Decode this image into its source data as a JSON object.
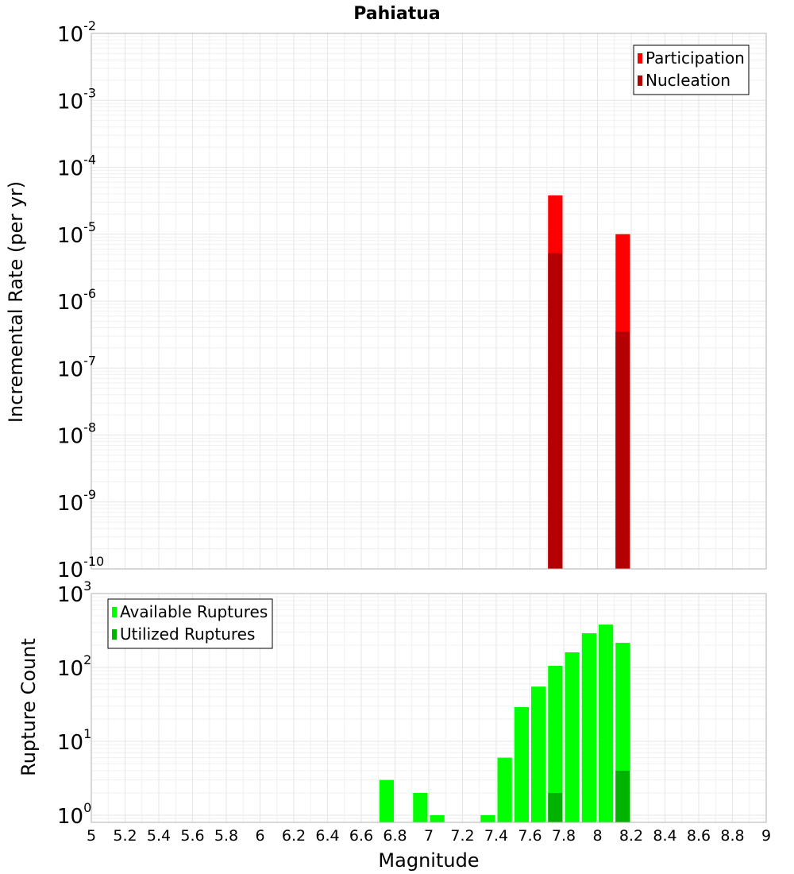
{
  "chart_data": [
    {
      "type": "bar",
      "title": "Pahiatua",
      "ylabel": "Incremental Rate (per yr)",
      "xlabel": "",
      "yscale": "log",
      "ylim": [
        1e-10,
        0.01
      ],
      "xlim": [
        5,
        9
      ],
      "y_ticks": [
        {
          "base": "10",
          "exp": "-10",
          "value": 1e-10
        },
        {
          "base": "10",
          "exp": "-9",
          "value": 1e-09
        },
        {
          "base": "10",
          "exp": "-8",
          "value": 1e-08
        },
        {
          "base": "10",
          "exp": "-7",
          "value": 1e-07
        },
        {
          "base": "10",
          "exp": "-6",
          "value": 1e-06
        },
        {
          "base": "10",
          "exp": "-5",
          "value": 1e-05
        },
        {
          "base": "10",
          "exp": "-4",
          "value": 0.0001
        },
        {
          "base": "10",
          "exp": "-3",
          "value": 0.001
        },
        {
          "base": "10",
          "exp": "-2",
          "value": 0.01
        }
      ],
      "legend_position": "top-right",
      "series": [
        {
          "name": "Participation",
          "color": "#ff0000",
          "x": [
            7.75,
            8.15
          ],
          "values": [
            3.8e-05,
            1e-05
          ]
        },
        {
          "name": "Nucleation",
          "color": "#b30000",
          "x": [
            7.75,
            8.15
          ],
          "values": [
            5.2e-06,
            3.5e-07
          ]
        }
      ]
    },
    {
      "type": "bar",
      "title": "",
      "ylabel": "Rupture Count",
      "xlabel": "Magnitude",
      "yscale": "log",
      "ylim": [
        0.8,
        1000
      ],
      "xlim": [
        5,
        9
      ],
      "y_ticks": [
        {
          "base": "10",
          "exp": "0",
          "value": 1
        },
        {
          "base": "10",
          "exp": "1",
          "value": 10
        },
        {
          "base": "10",
          "exp": "2",
          "value": 100
        },
        {
          "base": "10",
          "exp": "3",
          "value": 1000
        }
      ],
      "x_ticks": [
        "5",
        "5.2",
        "5.4",
        "5.6",
        "5.8",
        "6",
        "6.2",
        "6.4",
        "6.6",
        "6.8",
        "7",
        "7.2",
        "7.4",
        "7.6",
        "7.8",
        "8",
        "8.2",
        "8.4",
        "8.6",
        "8.8",
        "9"
      ],
      "legend_position": "top-left",
      "series": [
        {
          "name": "Available Ruptures",
          "color": "#00ff00",
          "x": [
            6.75,
            6.95,
            7.05,
            7.35,
            7.45,
            7.55,
            7.65,
            7.75,
            7.85,
            7.95,
            8.05,
            8.15
          ],
          "values": [
            3,
            2,
            1,
            1,
            6,
            29,
            55,
            105,
            160,
            290,
            380,
            215
          ]
        },
        {
          "name": "Utilized Ruptures",
          "color": "#00b300",
          "x": [
            7.75,
            8.15
          ],
          "values": [
            2,
            4
          ]
        }
      ]
    }
  ]
}
